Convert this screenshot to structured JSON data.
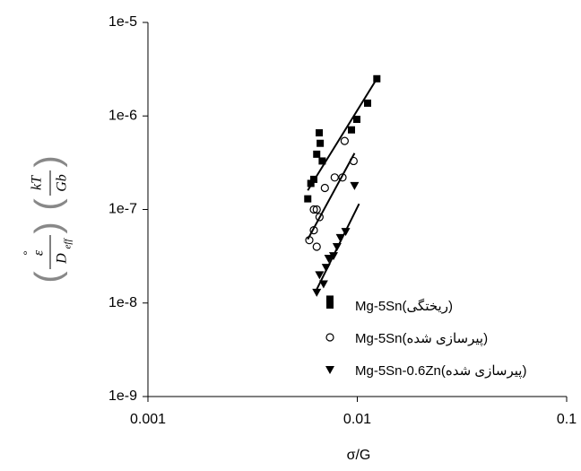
{
  "chart_data": {
    "type": "scatter",
    "x_label": "σ/G",
    "y_label": {
      "numerator_1": "ε",
      "denominator_1": "D",
      "subscript_1": "eff",
      "numerator_2": "kT",
      "denominator_2": "Gb"
    },
    "x_log": true,
    "y_log": true,
    "xlim": [
      0.001,
      0.1
    ],
    "xticks": [
      0.001,
      0.01,
      0.1
    ],
    "ylim": [
      1e-09,
      1e-05
    ],
    "yticks": [
      {
        "value": 1e-09,
        "label": "1e-9"
      },
      {
        "value": 1e-08,
        "label": "1e-8"
      },
      {
        "value": 1e-07,
        "label": "1e-7"
      },
      {
        "value": 1e-06,
        "label": "1e-6"
      },
      {
        "value": 1e-05,
        "label": "1e-5"
      }
    ],
    "series": [
      {
        "name": "Mg-5Sn(ریختگی)",
        "marker": "square",
        "color": "#000000",
        "x": [
          0.0124,
          0.0112,
          0.00995,
          0.00938,
          0.00658,
          0.00665,
          0.0064,
          0.0068,
          0.0062,
          0.006,
          0.0058,
          0.0074
        ],
        "values": [
          2.5e-06,
          1.37e-06,
          9.2e-07,
          7.1e-07,
          6.6e-07,
          5.1e-07,
          3.9e-07,
          3.3e-07,
          2.1e-07,
          1.9e-07,
          1.3e-07,
          1.1e-08
        ],
        "fit_x": [
          0.0058,
          0.0124
        ],
        "fit_y": [
          1.6e-07,
          2.5e-06
        ]
      },
      {
        "name": "Mg-5Sn(پیرسازی شده)",
        "marker": "circle",
        "color": "#000000",
        "x": [
          0.0087,
          0.0096,
          0.0085,
          0.0078,
          0.007,
          0.0062,
          0.0064,
          0.0066,
          0.0062,
          0.0059,
          0.0064
        ],
        "values": [
          5.4e-07,
          3.3e-07,
          2.2e-07,
          2.2e-07,
          1.7e-07,
          1e-07,
          1e-07,
          8.3e-08,
          6e-08,
          4.7e-08,
          4e-08
        ],
        "fit_x": [
          0.0058,
          0.0097
        ],
        "fit_y": [
          4.8e-08,
          4e-07
        ]
      },
      {
        "name": "Mg-5Sn-0.6Zn(پیرسازی شده)",
        "marker": "triangle-down",
        "color": "#000000",
        "x": [
          0.0097,
          0.0088,
          0.0083,
          0.008,
          0.0077,
          0.0073,
          0.0071,
          0.0066,
          0.0069,
          0.0064
        ],
        "values": [
          1.8e-07,
          5.8e-08,
          5e-08,
          4e-08,
          3.2e-08,
          3e-08,
          2.4e-08,
          2e-08,
          1.6e-08,
          1.3e-08
        ],
        "fit_x": [
          0.0064,
          0.0102
        ],
        "fit_y": [
          1.4e-08,
          1.15e-07
        ]
      }
    ]
  }
}
